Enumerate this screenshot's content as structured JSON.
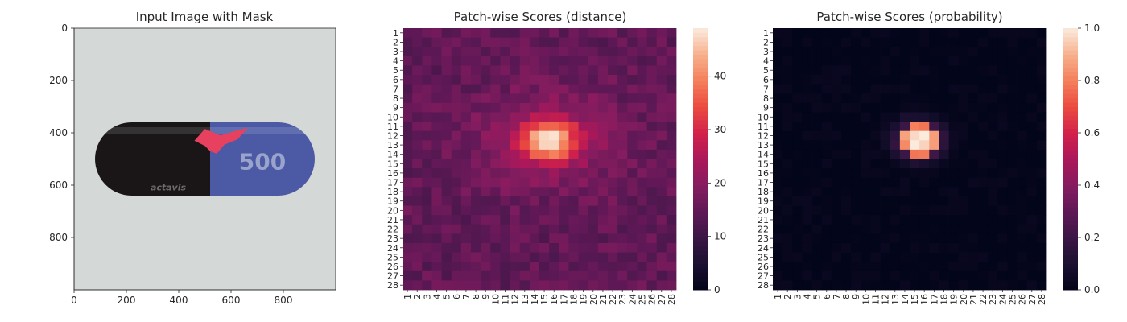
{
  "chart_data": [
    {
      "type": "image",
      "title": "Input Image with Mask",
      "xlim": [
        0,
        1000
      ],
      "ylim": [
        1000,
        0
      ],
      "xticks": [
        0,
        200,
        400,
        600,
        800
      ],
      "yticks": [
        0,
        200,
        400,
        600,
        800
      ],
      "image_content": {
        "background": "#d4d8d6",
        "capsule_left_color": "#1a1617",
        "capsule_right_color": "#4c5aa6",
        "mask_color": "#e8415f",
        "printed_number": "500",
        "printed_brand": "actavis"
      }
    },
    {
      "type": "heatmap",
      "title": "Patch-wise Scores (distance)",
      "rows": 28,
      "cols": 28,
      "row_labels": [
        "1",
        "2",
        "3",
        "4",
        "5",
        "6",
        "7",
        "8",
        "9",
        "10",
        "11",
        "12",
        "13",
        "14",
        "15",
        "16",
        "17",
        "18",
        "19",
        "20",
        "21",
        "22",
        "23",
        "24",
        "25",
        "26",
        "27",
        "28"
      ],
      "col_labels": [
        "1",
        "2",
        "3",
        "4",
        "5",
        "6",
        "7",
        "8",
        "9",
        "10",
        "11",
        "12",
        "13",
        "14",
        "15",
        "16",
        "17",
        "18",
        "19",
        "20",
        "21",
        "22",
        "23",
        "24",
        "25",
        "26",
        "27",
        "28"
      ],
      "vmin": 0,
      "vmax": 49,
      "colorbar_ticks": [
        0,
        10,
        20,
        30,
        40
      ],
      "colormap": "rocket",
      "peak": {
        "row": 12.5,
        "col": 15.5,
        "value": 49
      },
      "background_level": 16,
      "values": []
    },
    {
      "type": "heatmap",
      "title": "Patch-wise Scores (probability)",
      "rows": 28,
      "cols": 28,
      "row_labels": [
        "1",
        "2",
        "3",
        "4",
        "5",
        "6",
        "7",
        "8",
        "9",
        "10",
        "11",
        "12",
        "13",
        "14",
        "15",
        "16",
        "17",
        "18",
        "19",
        "20",
        "21",
        "22",
        "23",
        "24",
        "25",
        "26",
        "27",
        "28"
      ],
      "col_labels": [
        "1",
        "2",
        "3",
        "4",
        "5",
        "6",
        "7",
        "8",
        "9",
        "10",
        "11",
        "12",
        "13",
        "14",
        "15",
        "16",
        "17",
        "18",
        "19",
        "20",
        "21",
        "22",
        "23",
        "24",
        "25",
        "26",
        "27",
        "28"
      ],
      "vmin": 0,
      "vmax": 1.0,
      "colorbar_ticks": [
        "0.0",
        "0.2",
        "0.4",
        "0.6",
        "0.8",
        "1.0"
      ],
      "colormap": "rocket",
      "peak": {
        "row": 12.5,
        "col": 15.5,
        "value": 1.0
      },
      "background_level": 0.0,
      "values": []
    }
  ]
}
